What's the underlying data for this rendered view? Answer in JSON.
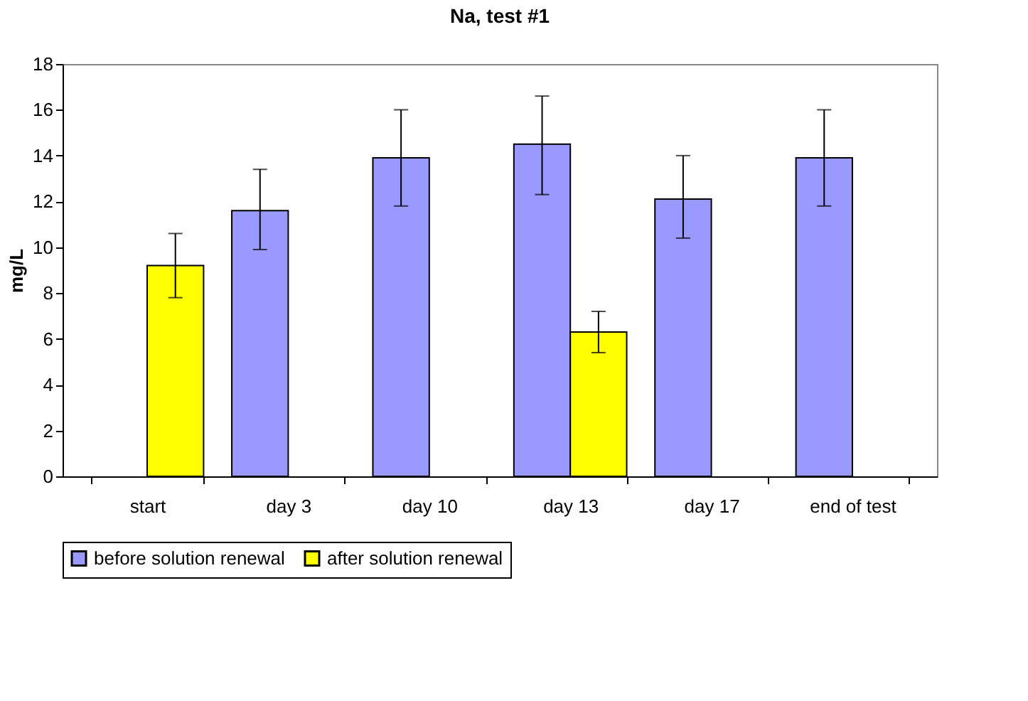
{
  "chart_data": {
    "type": "bar",
    "title": "Na, test #1",
    "ylabel": "mg/L",
    "categories": [
      "start",
      "day 3",
      "day 10",
      "day 13",
      "day 17",
      "end of test"
    ],
    "series": [
      {
        "name": "before solution renewal",
        "color": "#9999ff",
        "values": [
          null,
          11.6,
          13.9,
          14.5,
          12.1,
          13.9
        ],
        "errors": [
          null,
          [
            9.9,
            13.4
          ],
          [
            11.8,
            16.0
          ],
          [
            12.3,
            16.6
          ],
          [
            10.4,
            14.0
          ],
          [
            11.8,
            16.0
          ]
        ]
      },
      {
        "name": "after solution renewal",
        "color": "#ffff00",
        "values": [
          9.2,
          null,
          null,
          6.3,
          null,
          null
        ],
        "errors": [
          [
            7.8,
            10.6
          ],
          null,
          null,
          [
            5.4,
            7.2
          ],
          null,
          null
        ]
      }
    ],
    "ylim": [
      0,
      18
    ],
    "yticks": [
      0,
      2,
      4,
      6,
      8,
      10,
      12,
      14,
      16,
      18
    ],
    "grid": false,
    "legend": "bottom"
  }
}
